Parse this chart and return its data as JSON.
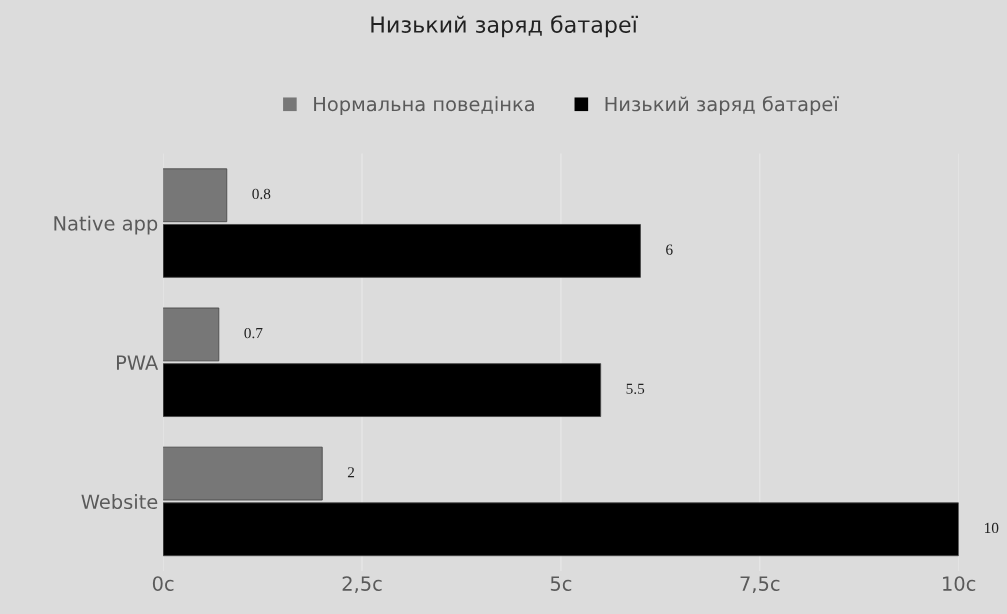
{
  "chart_data": {
    "type": "bar",
    "orientation": "horizontal",
    "title": "Низький заряд батареї",
    "categories": [
      "Native app",
      "PWA",
      "Website"
    ],
    "series": [
      {
        "name": "Нормальна поведінка",
        "color": "#777777",
        "values": [
          0.8,
          0.7,
          2
        ]
      },
      {
        "name": "Низький заряд батареї",
        "color": "#000000",
        "values": [
          6,
          5.5,
          10
        ]
      }
    ],
    "xlim": [
      0,
      10
    ],
    "xticks": [
      {
        "value": 0,
        "label": "0с"
      },
      {
        "value": 2.5,
        "label": "2,5с"
      },
      {
        "value": 5,
        "label": "5с"
      },
      {
        "value": 7.5,
        "label": "7,5с"
      },
      {
        "value": 10,
        "label": "10с"
      }
    ],
    "grid": "x",
    "legend": "top",
    "data_labels": true
  }
}
